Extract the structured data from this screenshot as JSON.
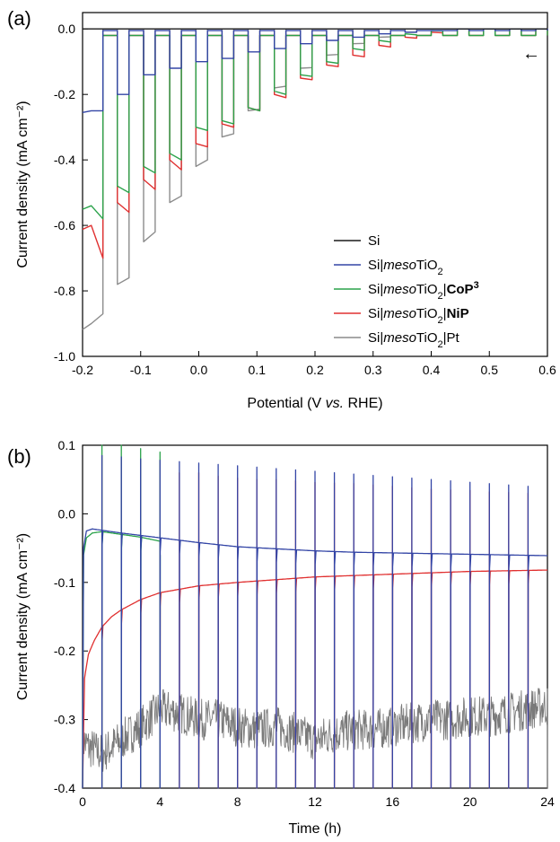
{
  "figure": {
    "panels": [
      "(a)",
      "(b)"
    ]
  },
  "chart_data": [
    {
      "panel": "(a)",
      "type": "line",
      "xlabel": "Potential (V vs. RHE)",
      "xlabel_parts": [
        "Potential (V ",
        "vs.",
        " RHE)"
      ],
      "ylabel": "Current density (mA cm⁻²)",
      "xlim": [
        -0.2,
        0.6
      ],
      "ylim": [
        -1.0,
        0.05
      ],
      "xticks": [
        -0.2,
        -0.1,
        0.0,
        0.1,
        0.2,
        0.3,
        0.4,
        0.5,
        0.6
      ],
      "xtick_labels": [
        "-0.2",
        "-0.1",
        "0.0",
        "0.1",
        "0.2",
        "0.3",
        "0.4",
        "0.5",
        "0.6"
      ],
      "yticks": [
        0.0,
        -0.2,
        -0.4,
        -0.6,
        -0.8,
        -1.0
      ],
      "ytick_labels": [
        "0.0",
        "-0.2",
        "-0.4",
        "-0.6",
        "-0.8",
        "-1.0"
      ],
      "scan_direction_arrow": "←",
      "legend_position": "lower-right",
      "chopped_light": {
        "light_on_start": [
          -0.185,
          -0.14,
          -0.095,
          -0.05,
          -0.005,
          0.04,
          0.085,
          0.13,
          0.175,
          0.22,
          0.265,
          0.31,
          0.355,
          0.4,
          0.445,
          0.49,
          0.535,
          0.58
        ],
        "light_on_end": [
          -0.165,
          -0.12,
          -0.075,
          -0.03,
          0.015,
          0.06,
          0.105,
          0.15,
          0.195,
          0.24,
          0.285,
          0.33,
          0.375,
          0.42,
          0.465,
          0.51,
          0.555,
          0.6
        ],
        "dark_gap": 0.025
      },
      "series": [
        {
          "name": "Si",
          "label_parts": [
            [
              "Si",
              "normal"
            ]
          ],
          "color": "#1a1a1a",
          "dark": 0.0,
          "light": [
            0,
            0,
            0,
            0,
            0,
            0,
            0,
            0,
            0,
            0,
            0,
            0,
            0,
            0,
            0,
            0,
            0,
            0
          ],
          "light_end": [
            0,
            0,
            0,
            0,
            0,
            0,
            0,
            0,
            0,
            0,
            0,
            0,
            0,
            0,
            0,
            0,
            0,
            0
          ]
        },
        {
          "name": "Si|mesoTiO2",
          "label_parts": [
            [
              "Si|",
              "normal"
            ],
            [
              "meso",
              "italic"
            ],
            [
              "TiO",
              "normal"
            ],
            [
              "2",
              "sub"
            ]
          ],
          "color": "#3345a6",
          "dark": -0.005,
          "light": [
            -0.25,
            -0.2,
            -0.14,
            -0.12,
            -0.1,
            -0.09,
            -0.07,
            -0.06,
            -0.045,
            -0.035,
            -0.025,
            -0.015,
            -0.01,
            -0.005,
            0,
            0,
            0,
            0
          ],
          "light_end": [
            -0.25,
            -0.2,
            -0.14,
            -0.12,
            -0.1,
            -0.09,
            -0.07,
            -0.06,
            -0.045,
            -0.035,
            -0.025,
            -0.015,
            -0.01,
            -0.005,
            0,
            0,
            0,
            0
          ]
        },
        {
          "name": "Si|mesoTiO2|CoP3",
          "label_parts": [
            [
              "Si|",
              "normal"
            ],
            [
              "meso",
              "italic"
            ],
            [
              "TiO",
              "normal"
            ],
            [
              "2",
              "sub"
            ],
            [
              "|",
              "normal"
            ],
            [
              "CoP",
              "bold"
            ],
            [
              "3",
              "boldsup"
            ]
          ],
          "color": "#2aa24a",
          "dark": -0.02,
          "light": [
            -0.54,
            -0.48,
            -0.42,
            -0.38,
            -0.3,
            -0.28,
            -0.24,
            -0.19,
            -0.14,
            -0.1,
            -0.06,
            -0.035,
            -0.015,
            -0.005,
            0,
            0,
            0,
            0
          ],
          "light_end": [
            -0.58,
            -0.5,
            -0.44,
            -0.4,
            -0.31,
            -0.29,
            -0.25,
            -0.2,
            -0.145,
            -0.105,
            -0.065,
            -0.04,
            -0.018,
            -0.006,
            0,
            0,
            0,
            0
          ]
        },
        {
          "name": "Si|mesoTiO2|NiP",
          "label_parts": [
            [
              "Si|",
              "normal"
            ],
            [
              "meso",
              "italic"
            ],
            [
              "TiO",
              "normal"
            ],
            [
              "2",
              "sub"
            ],
            [
              "|",
              "normal"
            ],
            [
              "NiP",
              "bold"
            ]
          ],
          "color": "#e03030",
          "dark": -0.02,
          "light": [
            -0.6,
            -0.53,
            -0.46,
            -0.4,
            -0.35,
            -0.29,
            -0.24,
            -0.2,
            -0.15,
            -0.11,
            -0.08,
            -0.05,
            -0.025,
            -0.01,
            0,
            0,
            0,
            0
          ],
          "light_end": [
            -0.7,
            -0.56,
            -0.49,
            -0.43,
            -0.36,
            -0.3,
            -0.25,
            -0.21,
            -0.155,
            -0.115,
            -0.085,
            -0.055,
            -0.028,
            -0.012,
            0,
            0,
            0,
            0
          ]
        },
        {
          "name": "Si|mesoTiO2|Pt",
          "label_parts": [
            [
              "Si|",
              "normal"
            ],
            [
              "meso",
              "italic"
            ],
            [
              "TiO",
              "normal"
            ],
            [
              "2",
              "sub"
            ],
            [
              "|Pt",
              "normal"
            ]
          ],
          "color": "#8c8c8c",
          "dark": 0.0,
          "light": [
            -0.9,
            -0.78,
            -0.65,
            -0.53,
            -0.42,
            -0.33,
            -0.25,
            -0.18,
            -0.12,
            -0.08,
            -0.045,
            -0.025,
            -0.01,
            0,
            0,
            0,
            0,
            0
          ],
          "light_end": [
            -0.87,
            -0.76,
            -0.62,
            -0.51,
            -0.4,
            -0.32,
            -0.245,
            -0.175,
            -0.118,
            -0.078,
            -0.044,
            -0.024,
            -0.01,
            0,
            0,
            0,
            0,
            0
          ]
        }
      ]
    },
    {
      "panel": "(b)",
      "type": "line",
      "xlabel": "Time (h)",
      "ylabel": "Current density (mA cm⁻²)",
      "xlim": [
        0,
        24
      ],
      "ylim": [
        -0.4,
        0.1
      ],
      "xticks": [
        0,
        4,
        8,
        12,
        16,
        20,
        24
      ],
      "xtick_labels": [
        "0",
        "4",
        "8",
        "12",
        "16",
        "20",
        "24"
      ],
      "yticks": [
        0.1,
        0.0,
        -0.1,
        -0.2,
        -0.3,
        -0.4
      ],
      "ytick_labels": [
        "0.1",
        "0.0",
        "-0.1",
        "-0.2",
        "-0.3",
        "-0.4"
      ],
      "chop_times": [
        1,
        2,
        3,
        4,
        5,
        6,
        7,
        8,
        9,
        10,
        11,
        12,
        13,
        14,
        15,
        16,
        17,
        18,
        19,
        20,
        21,
        22,
        23,
        24
      ],
      "series": [
        {
          "name": "Si|mesoTiO2",
          "color": "#3345a6",
          "x": [
            0,
            0.05,
            0.2,
            0.5,
            1,
            2,
            4,
            6,
            8,
            10,
            12,
            14,
            16,
            18,
            20,
            22,
            24
          ],
          "y": [
            -0.4,
            -0.05,
            -0.025,
            -0.022,
            -0.024,
            -0.028,
            -0.035,
            -0.042,
            -0.048,
            -0.051,
            -0.054,
            -0.056,
            -0.057,
            -0.058,
            -0.059,
            -0.06,
            -0.061
          ],
          "spike_top": [
            0.085,
            0.083,
            0.08,
            0.078,
            0.076,
            0.074,
            0.072,
            0.07,
            0.068,
            0.066,
            0.064,
            0.062,
            0.06,
            0.058,
            0.056,
            0.054,
            0.052,
            0.05,
            0.048,
            0.046,
            0.044,
            0.042,
            0.04,
            0.038
          ]
        },
        {
          "name": "Si|mesoTiO2|CoP3",
          "color": "#2aa24a",
          "x": [
            0,
            0.05,
            0.2,
            0.5,
            1,
            2,
            3,
            4
          ],
          "y": [
            -0.4,
            -0.06,
            -0.035,
            -0.028,
            -0.026,
            -0.03,
            -0.034,
            -0.04
          ],
          "spike_top": [
            0.1,
            0.1,
            0.095,
            0.09
          ]
        },
        {
          "name": "Si|mesoTiO2|NiP",
          "color": "#e03030",
          "x": [
            0,
            0.1,
            0.3,
            0.6,
            1,
            1.5,
            2,
            3,
            4,
            5,
            6,
            8,
            10,
            12,
            14,
            16,
            18,
            20,
            22,
            24
          ],
          "y": [
            -0.4,
            -0.24,
            -0.205,
            -0.185,
            -0.165,
            -0.15,
            -0.14,
            -0.125,
            -0.115,
            -0.11,
            -0.105,
            -0.1,
            -0.096,
            -0.092,
            -0.09,
            -0.088,
            -0.086,
            -0.084,
            -0.083,
            -0.082
          ],
          "spike_top": [
            0.085,
            0.083,
            0.08,
            0.078,
            0.06,
            0.06,
            0.055,
            0.052,
            0.05,
            0.05,
            0.048,
            0.046,
            0.045,
            0.044,
            0.042,
            0.04,
            0.038,
            0.036,
            0.035,
            0.034,
            0.032,
            0.031,
            0.03,
            0.029
          ]
        },
        {
          "name": "Si|mesoTiO2|Pt",
          "color": "#7a7a7a",
          "x": [
            0,
            0.3,
            1,
            2,
            3,
            4,
            5,
            6,
            7,
            8,
            9,
            10,
            11,
            12,
            13,
            14,
            15,
            16,
            17,
            18,
            19,
            20,
            21,
            22,
            23,
            24
          ],
          "y": [
            -0.33,
            -0.34,
            -0.35,
            -0.33,
            -0.31,
            -0.285,
            -0.29,
            -0.3,
            -0.3,
            -0.31,
            -0.315,
            -0.31,
            -0.32,
            -0.33,
            -0.32,
            -0.315,
            -0.315,
            -0.31,
            -0.305,
            -0.3,
            -0.3,
            -0.295,
            -0.295,
            -0.29,
            -0.285,
            -0.28
          ],
          "noise": 0.03,
          "spike_bottom": -0.4
        }
      ]
    }
  ]
}
